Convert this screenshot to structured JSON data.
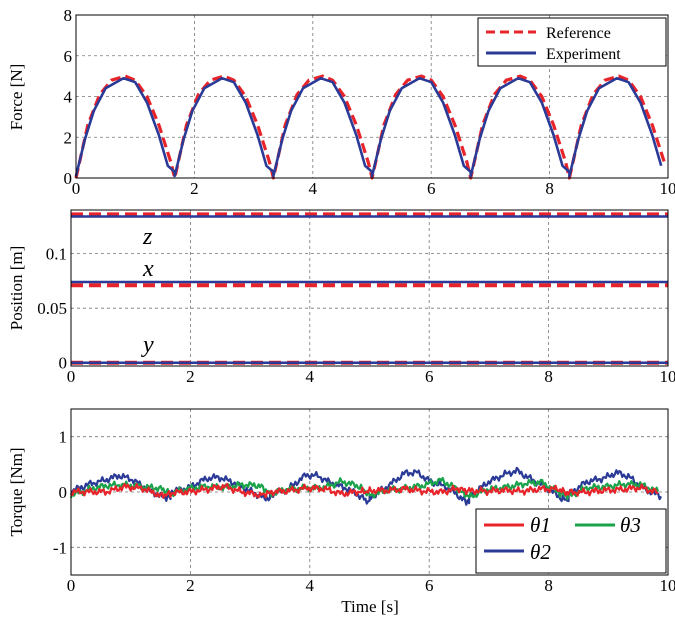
{
  "chart_data": [
    {
      "type": "line",
      "ylabel": "Force [N]",
      "xlim": [
        0,
        10
      ],
      "ylim": [
        0,
        8
      ],
      "xticks": [
        "0",
        "2",
        "4",
        "6",
        "8",
        "10"
      ],
      "yticks": [
        "0",
        "2",
        "4",
        "6",
        "8"
      ],
      "grid": true,
      "legend_position": "top-right",
      "cycle_period": 1.667,
      "series": [
        {
          "name": "Reference",
          "color": "#e8242b",
          "style": "dashed",
          "x": [
            0,
            0.2,
            0.4,
            0.6,
            0.833,
            1.0,
            1.2,
            1.4,
            1.6,
            1.667
          ],
          "y": [
            0,
            2.6,
            4.1,
            4.8,
            5.0,
            4.8,
            4.0,
            2.6,
            0.8,
            0.0
          ]
        },
        {
          "name": "Experiment",
          "color": "#2a3a96",
          "style": "solid",
          "x": [
            0,
            0.15,
            0.3,
            0.5,
            0.8,
            1.0,
            1.2,
            1.4,
            1.55,
            1.667
          ],
          "y": [
            0.1,
            1.9,
            3.3,
            4.4,
            4.9,
            4.7,
            3.7,
            2.1,
            0.6,
            0.3
          ]
        }
      ]
    },
    {
      "type": "line",
      "ylabel": "Position [m]",
      "xlim": [
        0,
        10
      ],
      "ylim": [
        -0.003,
        0.14
      ],
      "xticks": [
        "0",
        "2",
        "4",
        "6",
        "8",
        "10"
      ],
      "yticks": [
        "0",
        "0.05",
        "0.1"
      ],
      "grid": true,
      "annotations": [
        "z",
        "x",
        "y"
      ],
      "series": [
        {
          "label": "z",
          "role": "reference",
          "color": "#e8242b",
          "style": "dashed",
          "value": 0.136
        },
        {
          "label": "z",
          "role": "experiment",
          "color": "#2a3a96",
          "style": "solid",
          "value": 0.134
        },
        {
          "label": "x",
          "role": "reference",
          "color": "#e8242b",
          "style": "dashed",
          "value": 0.071
        },
        {
          "label": "x",
          "role": "experiment",
          "color": "#2a3a96",
          "style": "solid",
          "value": 0.074
        },
        {
          "label": "y",
          "role": "reference",
          "color": "#e8242b",
          "style": "dashed",
          "value": 0.0
        },
        {
          "label": "y",
          "role": "experiment",
          "color": "#2a3a96",
          "style": "solid",
          "value": 0.0
        }
      ]
    },
    {
      "type": "line",
      "ylabel": "Torque [Nm]",
      "xlabel": "Time [s]",
      "xlim": [
        0,
        10
      ],
      "ylim": [
        -1.5,
        1.5
      ],
      "xticks": [
        "0",
        "2",
        "4",
        "6",
        "8",
        "10"
      ],
      "yticks": [
        "-1",
        "0",
        "1"
      ],
      "grid": true,
      "legend_position": "bottom-right",
      "cycle_period": 1.667,
      "series": [
        {
          "name": "θ1",
          "color": "#e8242b",
          "x": [
            0,
            0.3,
            0.6,
            0.9,
            1.2,
            1.5,
            1.667
          ],
          "y": [
            0.0,
            0.02,
            0.04,
            0.05,
            0.03,
            0.0,
            -0.02
          ]
        },
        {
          "name": "θ2",
          "color": "#2a3a96",
          "x": [
            0,
            0.3,
            0.6,
            0.8,
            1.0,
            1.3,
            1.55,
            1.667
          ],
          "y": [
            -0.05,
            0.12,
            0.28,
            0.32,
            0.22,
            0.05,
            -0.1,
            -0.15
          ]
        },
        {
          "name": "θ3",
          "color": "#1aa34a",
          "x": [
            0,
            0.3,
            0.6,
            0.9,
            1.2,
            1.5,
            1.667
          ],
          "y": [
            -0.05,
            0.05,
            0.08,
            0.12,
            0.16,
            0.05,
            -0.05
          ]
        }
      ]
    }
  ]
}
